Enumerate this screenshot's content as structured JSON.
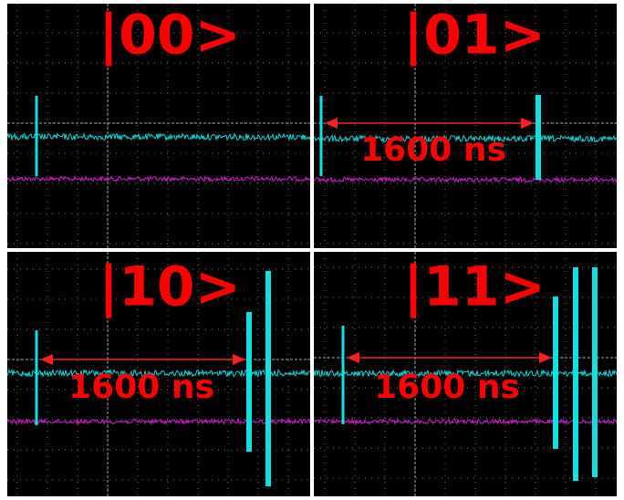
{
  "panels": [
    {
      "label": "|00>"
    },
    {
      "label": "|01>",
      "annotation": "1600 ns"
    },
    {
      "label": "|10>",
      "annotation": "1600 ns"
    },
    {
      "label": "|11>",
      "annotation": "1600 ns"
    }
  ]
}
